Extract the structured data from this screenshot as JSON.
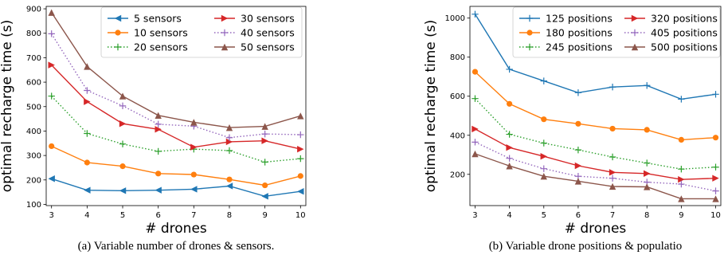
{
  "chart_data": [
    {
      "type": "line",
      "xlabel": "# drones",
      "ylabel": "optimal recharge time (s)",
      "caption": "(a) Variable number of drones & sensors.",
      "x": [
        3,
        4,
        5,
        6,
        7,
        8,
        9,
        10
      ],
      "xlim": [
        2.85,
        10.15
      ],
      "ylim": [
        95,
        910
      ],
      "yticks": [
        100,
        200,
        300,
        400,
        500,
        600,
        700,
        800,
        900
      ],
      "legend": {
        "placement": "top-right",
        "columns": 2
      },
      "series": [
        {
          "name": "5 sensors",
          "color": "#1f77b4",
          "style": "solid",
          "marker": "triangle-left",
          "values": [
            205,
            158,
            156,
            158,
            162,
            175,
            133,
            153
          ]
        },
        {
          "name": "10 sensors",
          "color": "#ff7f0e",
          "style": "solid",
          "marker": "circle",
          "values": [
            338,
            271,
            256,
            226,
            222,
            202,
            178,
            216
          ]
        },
        {
          "name": "20 sensors",
          "color": "#2ca02c",
          "style": "dotted",
          "marker": "plus",
          "values": [
            543,
            390,
            347,
            317,
            326,
            320,
            273,
            287
          ]
        },
        {
          "name": "30 sensors",
          "color": "#d62728",
          "style": "solid",
          "marker": "triangle-right",
          "values": [
            670,
            520,
            430,
            407,
            334,
            356,
            360,
            326
          ]
        },
        {
          "name": "40 sensors",
          "color": "#9467bd",
          "style": "dotted",
          "marker": "plus",
          "values": [
            798,
            566,
            503,
            428,
            420,
            373,
            388,
            385
          ]
        },
        {
          "name": "50 sensors",
          "color": "#8c564b",
          "style": "solid",
          "marker": "triangle-up",
          "values": [
            885,
            664,
            543,
            464,
            436,
            414,
            419,
            462
          ]
        }
      ]
    },
    {
      "type": "line",
      "xlabel": "# drones",
      "ylabel": "optimal recharge time (s)",
      "caption": "(b) Variable drone positions & populatio",
      "x": [
        3,
        4,
        5,
        6,
        7,
        8,
        9,
        10
      ],
      "xlim": [
        2.85,
        10.15
      ],
      "ylim": [
        40,
        1060
      ],
      "yticks": [
        200,
        400,
        600,
        800,
        1000
      ],
      "legend": {
        "placement": "top-right",
        "columns": 2
      },
      "series": [
        {
          "name": "125 positions",
          "color": "#1f77b4",
          "style": "solid",
          "marker": "plus",
          "values": [
            1020,
            738,
            678,
            618,
            647,
            655,
            585,
            610
          ]
        },
        {
          "name": "180 positions",
          "color": "#ff7f0e",
          "style": "solid",
          "marker": "circle",
          "values": [
            725,
            561,
            482,
            459,
            434,
            428,
            377,
            388
          ]
        },
        {
          "name": "245 positions",
          "color": "#2ca02c",
          "style": "dotted",
          "marker": "plus",
          "values": [
            588,
            405,
            360,
            325,
            289,
            258,
            227,
            237
          ]
        },
        {
          "name": "320 positions",
          "color": "#d62728",
          "style": "solid",
          "marker": "triangle-right",
          "values": [
            432,
            337,
            292,
            244,
            210,
            204,
            174,
            180
          ]
        },
        {
          "name": "405 positions",
          "color": "#9467bd",
          "style": "dotted",
          "marker": "plus",
          "values": [
            365,
            282,
            229,
            190,
            180,
            160,
            150,
            115
          ]
        },
        {
          "name": "500 positions",
          "color": "#8c564b",
          "style": "solid",
          "marker": "triangle-up",
          "values": [
            305,
            243,
            190,
            165,
            138,
            136,
            75,
            75
          ]
        }
      ]
    }
  ]
}
